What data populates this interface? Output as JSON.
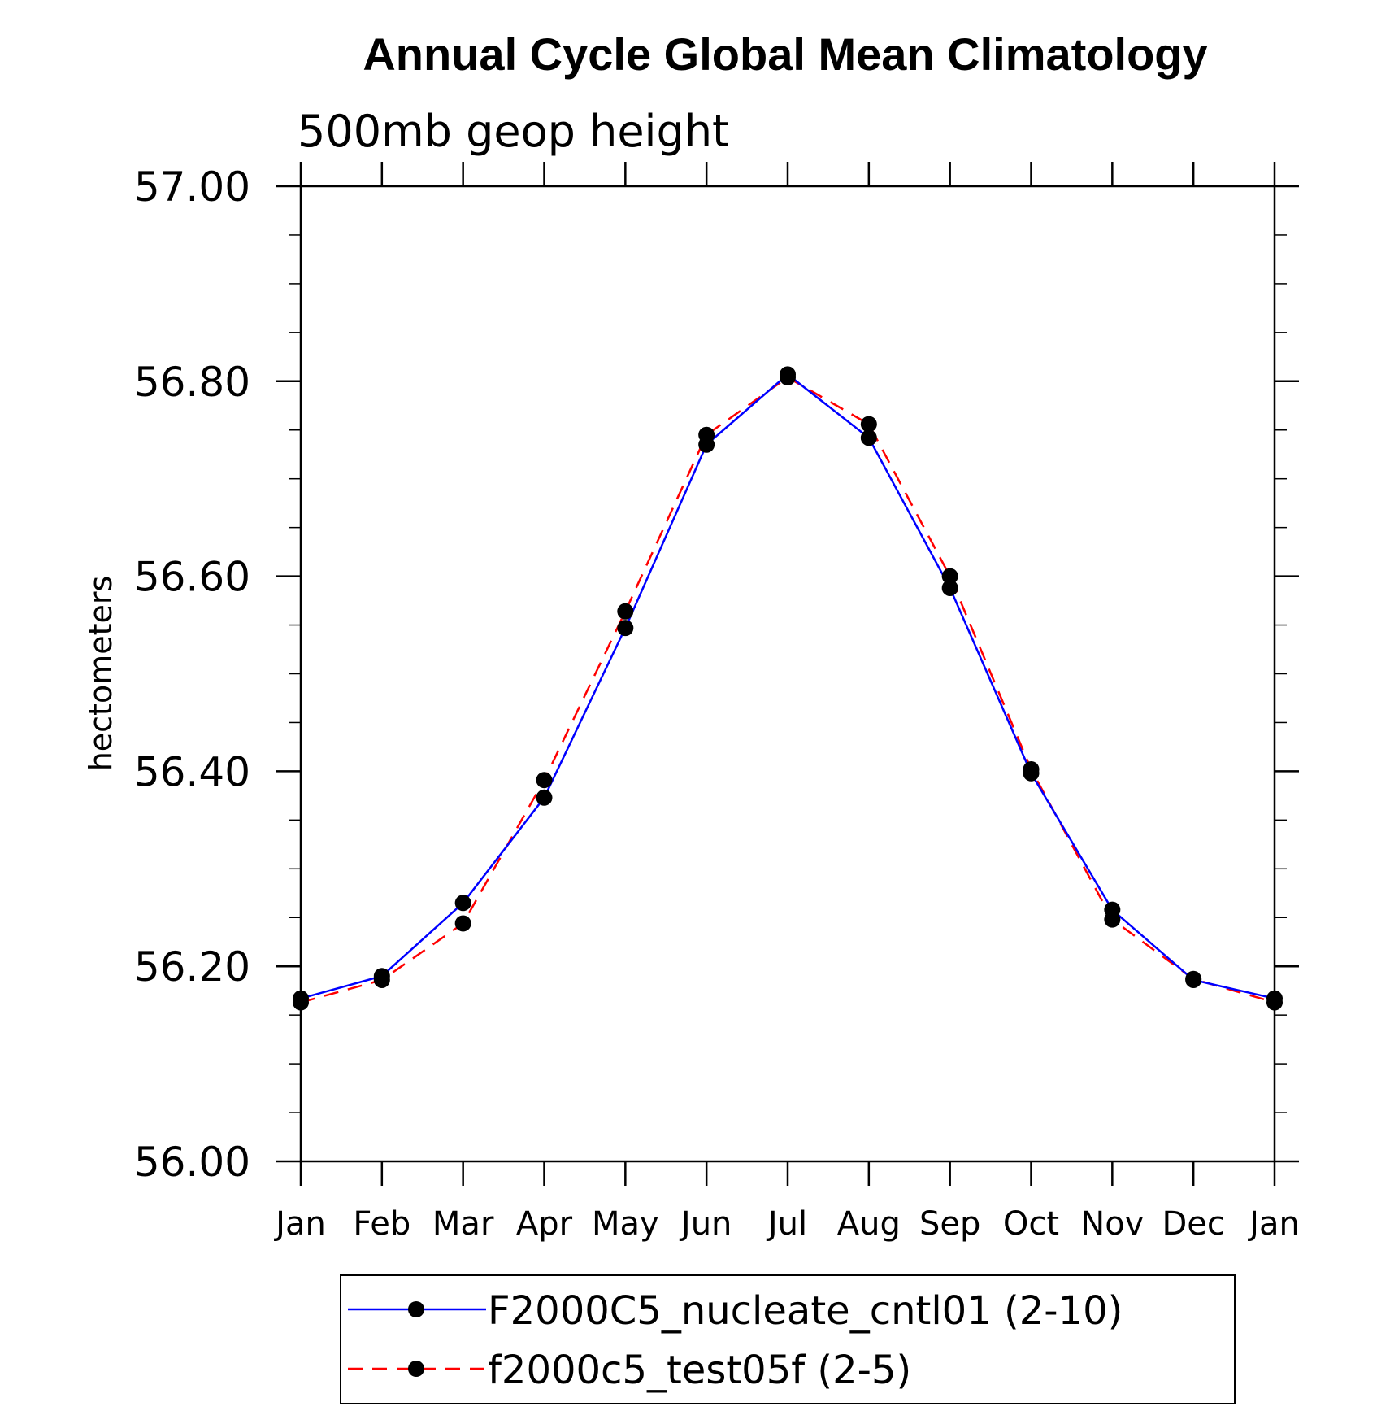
{
  "chart_data": {
    "type": "line",
    "title": "Annual Cycle Global Mean Climatology",
    "subtitle": "500mb geop height",
    "xlabel": "",
    "ylabel": "hectometers",
    "ylim": [
      56.0,
      57.0
    ],
    "yticks": [
      "56.00",
      "56.20",
      "56.40",
      "56.60",
      "56.80",
      "57.00"
    ],
    "categories": [
      "Jan",
      "Feb",
      "Mar",
      "Apr",
      "May",
      "Jun",
      "Jul",
      "Aug",
      "Sep",
      "Oct",
      "Nov",
      "Dec",
      "Jan"
    ],
    "grid": false,
    "legend_position": "bottom",
    "series": [
      {
        "name": "F2000C5_nucleate_cntl01 (2-10)",
        "color": "#0000ff",
        "style": "solid",
        "marker": "filled-circle",
        "values": [
          56.167,
          56.19,
          56.265,
          56.373,
          56.547,
          56.735,
          56.807,
          56.742,
          56.588,
          56.398,
          56.258,
          56.186,
          56.167
        ]
      },
      {
        "name": "f2000c5_test05f (2-5)",
        "color": "#ff0000",
        "style": "dashed",
        "marker": "filled-circle",
        "values": [
          56.163,
          56.186,
          56.244,
          56.391,
          56.564,
          56.745,
          56.804,
          56.756,
          56.6,
          56.402,
          56.248,
          56.187,
          56.163
        ]
      }
    ]
  }
}
